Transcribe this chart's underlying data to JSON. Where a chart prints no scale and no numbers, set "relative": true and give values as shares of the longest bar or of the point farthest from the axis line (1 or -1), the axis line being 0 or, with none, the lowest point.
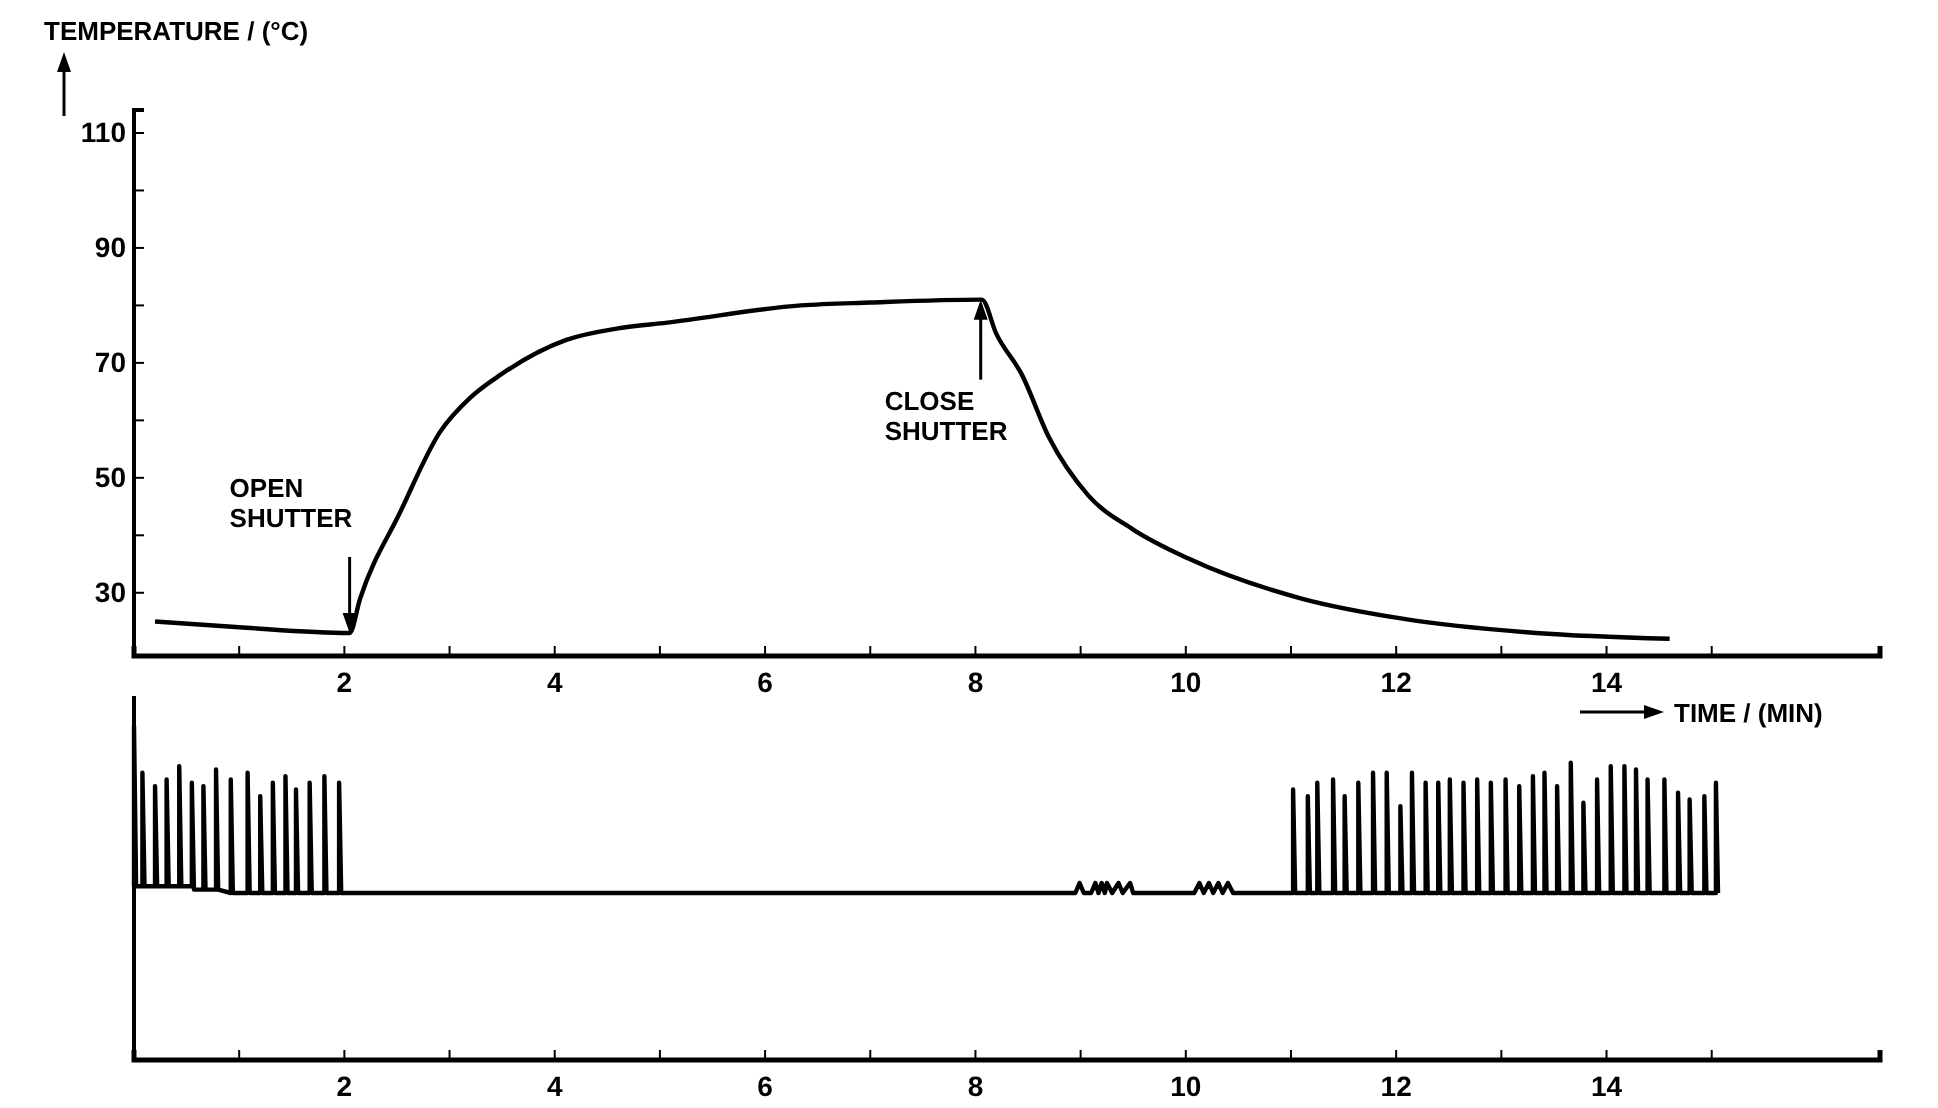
{
  "chart_data": [
    {
      "type": "line",
      "xlabel": "TIME / (MIN)",
      "ylabel": "TEMPERATURE / (°C)",
      "xlim": [
        0,
        16.6
      ],
      "ylim": [
        19,
        114
      ],
      "xticks": [
        {
          "value": 1,
          "label": null
        },
        2,
        {
          "value": 3,
          "label": null
        },
        4,
        {
          "value": 5,
          "label": null
        },
        6,
        {
          "value": 7,
          "label": null
        },
        8,
        {
          "value": 9,
          "label": null
        },
        10,
        {
          "value": 11,
          "label": null
        },
        12,
        {
          "value": 13,
          "label": null
        },
        14,
        {
          "value": 15,
          "label": null
        }
      ],
      "yticks": [
        30,
        {
          "value": 40,
          "label": null
        },
        50,
        {
          "value": 60,
          "label": null
        },
        70,
        {
          "value": 80,
          "label": null
        },
        90,
        {
          "value": 100,
          "label": null
        },
        110
      ],
      "series": [
        {
          "color": "#000000",
          "x": [
            0.2,
            1,
            2.05,
            2.15,
            2.53,
            2.91,
            3.2,
            3.49,
            4.11,
            4.6,
            5.07,
            6.34,
            7,
            8.06,
            8.2,
            8.44,
            8.7,
            9.07,
            9.5,
            10.02,
            11.1,
            12.06,
            13.33,
            14.6
          ],
          "values": [
            25,
            24,
            23,
            29,
            44,
            58,
            64,
            68,
            74,
            76,
            77,
            80,
            80.5,
            81,
            75,
            68,
            57,
            47,
            41,
            36,
            29,
            25.5,
            23,
            22
          ]
        }
      ],
      "annotations": [
        {
          "text": "OPEN SHUTTER",
          "x": 2.05,
          "y": 23
        },
        {
          "text": "CLOSE SHUTTER",
          "x": 8.05,
          "y": 81
        }
      ]
    },
    {
      "type": "line",
      "relative": true,
      "xlim": [
        0,
        16.6
      ],
      "xticks": [
        {
          "value": 1,
          "label": null
        },
        2,
        {
          "value": 3,
          "label": null
        },
        4,
        {
          "value": 5,
          "label": null
        },
        6,
        {
          "value": 7,
          "label": null
        },
        8,
        {
          "value": 9,
          "label": null
        },
        10,
        {
          "value": 11,
          "label": null
        },
        12,
        {
          "value": 13,
          "label": null
        },
        14,
        {
          "value": 15,
          "label": null
        }
      ],
      "series": [
        {
          "color": "#000000",
          "x": [
            0,
            0,
            0.02,
            0.08,
            0.08,
            0.1,
            0.2,
            0.2,
            0.22,
            0.31,
            0.31,
            0.33,
            0.43,
            0.43,
            0.45,
            0.55,
            0.55,
            0.57,
            0.66,
            0.66,
            0.68,
            0.78,
            0.78,
            0.8,
            0.92,
            0.92,
            0.94,
            1.08,
            1.08,
            1.1,
            1.2,
            1.2,
            1.22,
            1.32,
            1.32,
            1.34,
            1.44,
            1.44,
            1.46,
            1.54,
            1.54,
            1.56,
            1.67,
            1.67,
            1.69,
            1.81,
            1.81,
            1.83,
            1.95,
            1.95,
            1.97,
            4,
            8,
            8.95,
            8.99,
            9.03,
            9.1,
            9.14,
            9.17,
            9.2,
            9.23,
            9.25,
            9.3,
            9.36,
            9.4,
            9.47,
            9.5,
            10.08,
            10.13,
            10.17,
            10.22,
            10.26,
            10.31,
            10.35,
            10.4,
            10.45,
            11,
            11.02,
            11.02,
            11.04,
            11.16,
            11.16,
            11.18,
            11.25,
            11.25,
            11.27,
            11.4,
            11.4,
            11.42,
            11.51,
            11.51,
            11.53,
            11.64,
            11.64,
            11.66,
            11.78,
            11.78,
            11.8,
            11.91,
            11.91,
            11.93,
            12.04,
            12.04,
            12.06,
            12.15,
            12.15,
            12.17,
            12.28,
            12.28,
            12.3,
            12.4,
            12.4,
            12.42,
            12.51,
            12.51,
            12.53,
            12.64,
            12.64,
            12.66,
            12.77,
            12.77,
            12.79,
            12.9,
            12.9,
            12.92,
            13.04,
            13.04,
            13.06,
            13.17,
            13.17,
            13.19,
            13.3,
            13.3,
            13.32,
            13.41,
            13.41,
            13.43,
            13.53,
            13.53,
            13.55,
            13.66,
            13.66,
            13.68,
            13.78,
            13.78,
            13.8,
            13.91,
            13.91,
            13.93,
            14.04,
            14.04,
            14.06,
            14.17,
            14.17,
            14.19,
            14.28,
            14.28,
            14.3,
            14.39,
            14.39,
            14.41,
            14.55,
            14.55,
            14.57,
            14.68,
            14.68,
            14.7,
            14.79,
            14.79,
            14.81,
            14.93,
            14.93,
            14.95,
            15.04,
            15.04,
            15.06
          ],
          "values": [
            0.52,
            1.0,
            0.52,
            0.52,
            0.86,
            0.52,
            0.52,
            0.82,
            0.52,
            0.52,
            0.84,
            0.52,
            0.52,
            0.88,
            0.52,
            0.52,
            0.83,
            0.51,
            0.51,
            0.82,
            0.51,
            0.51,
            0.87,
            0.51,
            0.5,
            0.84,
            0.5,
            0.5,
            0.86,
            0.5,
            0.5,
            0.79,
            0.5,
            0.5,
            0.83,
            0.5,
            0.5,
            0.85,
            0.5,
            0.5,
            0.81,
            0.5,
            0.5,
            0.83,
            0.5,
            0.5,
            0.85,
            0.5,
            0.5,
            0.83,
            0.5,
            0.5,
            0.5,
            0.5,
            0.53,
            0.5,
            0.5,
            0.53,
            0.5,
            0.53,
            0.5,
            0.53,
            0.5,
            0.53,
            0.5,
            0.53,
            0.5,
            0.5,
            0.53,
            0.5,
            0.53,
            0.5,
            0.53,
            0.5,
            0.53,
            0.5,
            0.5,
            0.5,
            0.81,
            0.5,
            0.5,
            0.79,
            0.5,
            0.5,
            0.83,
            0.5,
            0.5,
            0.84,
            0.5,
            0.5,
            0.79,
            0.5,
            0.5,
            0.83,
            0.5,
            0.5,
            0.86,
            0.5,
            0.5,
            0.86,
            0.5,
            0.5,
            0.76,
            0.5,
            0.5,
            0.86,
            0.5,
            0.5,
            0.83,
            0.5,
            0.5,
            0.83,
            0.5,
            0.5,
            0.84,
            0.5,
            0.5,
            0.83,
            0.5,
            0.5,
            0.84,
            0.5,
            0.5,
            0.83,
            0.5,
            0.5,
            0.84,
            0.5,
            0.5,
            0.82,
            0.5,
            0.5,
            0.85,
            0.5,
            0.5,
            0.86,
            0.5,
            0.5,
            0.82,
            0.5,
            0.5,
            0.89,
            0.5,
            0.5,
            0.77,
            0.5,
            0.5,
            0.84,
            0.5,
            0.5,
            0.88,
            0.5,
            0.5,
            0.88,
            0.5,
            0.5,
            0.87,
            0.5,
            0.5,
            0.84,
            0.5,
            0.5,
            0.84,
            0.5,
            0.5,
            0.8,
            0.5,
            0.5,
            0.78,
            0.5,
            0.5,
            0.79,
            0.5,
            0.5,
            0.83,
            0.5
          ]
        }
      ]
    }
  ]
}
